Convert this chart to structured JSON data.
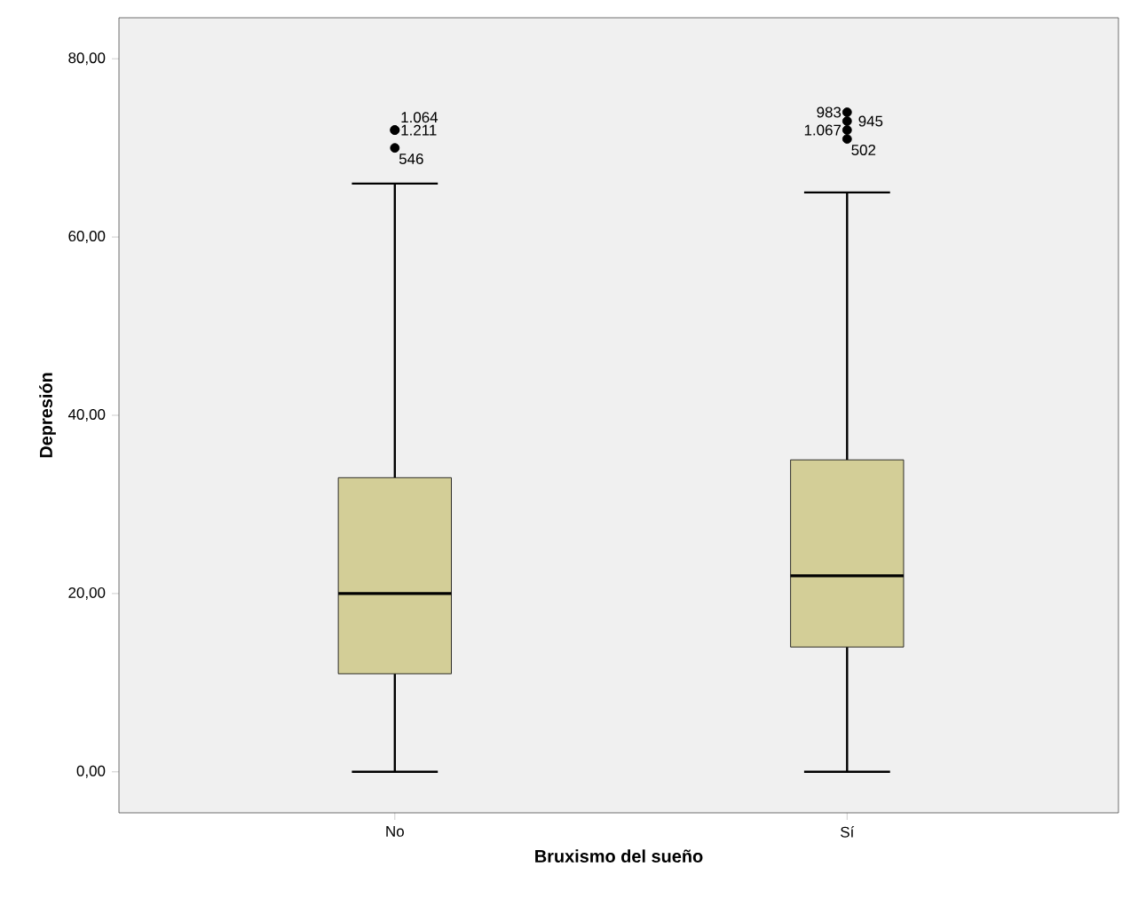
{
  "chart_data": {
    "type": "box",
    "xlabel": "Bruxismo del sueño",
    "ylabel": "Depresión",
    "categories": [
      "No",
      "Sí"
    ],
    "boxes": [
      {
        "low": 0,
        "q1": 11,
        "median": 20,
        "q3": 33,
        "high": 66,
        "outliers": [
          72,
          72,
          70
        ]
      },
      {
        "low": 0,
        "q1": 14,
        "median": 22,
        "q3": 35,
        "high": 65,
        "outliers": [
          74,
          73,
          72,
          71
        ]
      }
    ],
    "color": "#d3ce97",
    "marker": "circle",
    "ylim": [
      -4.6,
      84.6
    ],
    "yticks": [
      {
        "value": 0,
        "label": "0,00"
      },
      {
        "value": 20,
        "label": "20,00"
      },
      {
        "value": 40,
        "label": "40,00"
      },
      {
        "value": 60,
        "label": "60,00"
      },
      {
        "value": 80,
        "label": "80,00"
      }
    ],
    "grid": false,
    "annotations": [
      "1.064",
      "1.211",
      "546",
      "983",
      "945",
      "1.067",
      "502"
    ]
  }
}
